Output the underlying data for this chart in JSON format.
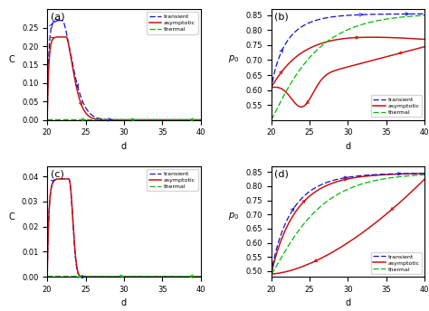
{
  "colors": {
    "transient": "#1111cc",
    "asymptotic": "#cc1111",
    "thermal": "#00bb00"
  },
  "panel_a": {
    "label": "(a)",
    "ylabel": "C",
    "ylim": [
      0,
      0.3
    ],
    "yticks": [
      0.0,
      0.05,
      0.1,
      0.15,
      0.2,
      0.25
    ],
    "legend_loc": "upper right"
  },
  "panel_b": {
    "label": "(b)",
    "ylabel": "p_0",
    "ylim": [
      0.5,
      0.87
    ],
    "yticks": [
      0.55,
      0.6,
      0.65,
      0.7,
      0.75,
      0.8,
      0.85
    ],
    "legend_loc": "lower right"
  },
  "panel_c": {
    "label": "(c)",
    "ylabel": "C",
    "ylim": [
      0,
      0.044
    ],
    "yticks": [
      0.0,
      0.01,
      0.02,
      0.03,
      0.04
    ],
    "legend_loc": "upper right"
  },
  "panel_d": {
    "label": "(d)",
    "ylabel": "p_0",
    "ylim": [
      0.48,
      0.87
    ],
    "yticks": [
      0.5,
      0.55,
      0.6,
      0.65,
      0.7,
      0.75,
      0.8,
      0.85
    ],
    "legend_loc": "lower right"
  }
}
